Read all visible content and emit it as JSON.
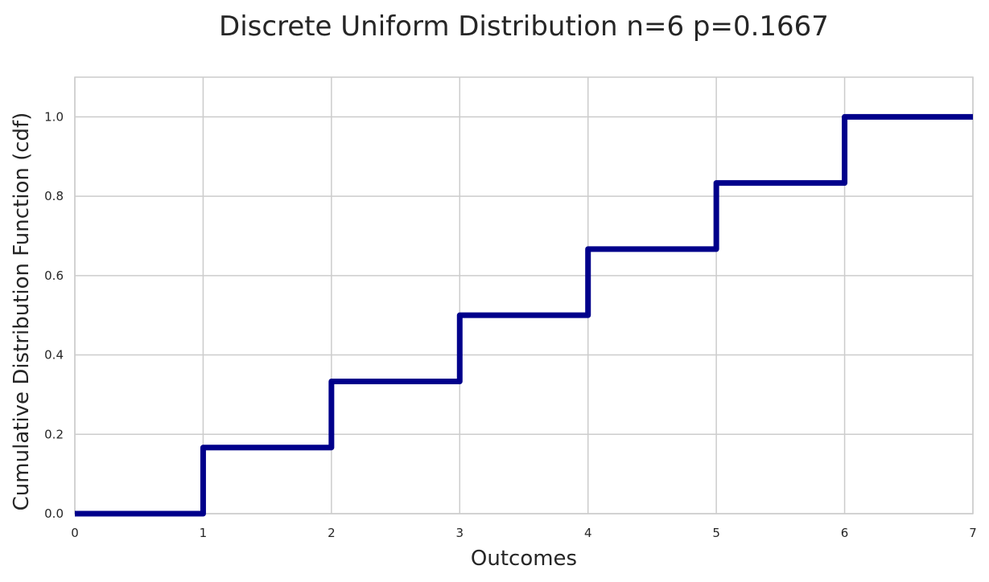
{
  "chart_data": {
    "type": "line",
    "style": "step",
    "title": "Discrete Uniform Distribution n=6 p=0.1667",
    "xlabel": "Outcomes",
    "ylabel": "Cumulative Distribution Function (cdf)",
    "xlim": [
      0,
      7
    ],
    "ylim": [
      0,
      1.1
    ],
    "xticks": [
      0,
      1,
      2,
      3,
      4,
      5,
      6,
      7
    ],
    "xtick_labels": [
      "0",
      "1",
      "2",
      "3",
      "4",
      "5",
      "6",
      "7"
    ],
    "yticks": [
      0,
      0.2,
      0.4,
      0.6,
      0.8,
      1.0
    ],
    "ytick_labels": [
      "0.0",
      "0.2",
      "0.4",
      "0.6",
      "0.8",
      "1.0"
    ],
    "grid": true,
    "line_color": "#00008b",
    "series": [
      {
        "x": [
          0,
          1,
          2,
          3,
          4,
          5,
          6,
          7
        ],
        "y": [
          0,
          0.1667,
          0.3333,
          0.5,
          0.6667,
          0.8333,
          1.0,
          1.0
        ]
      }
    ]
  }
}
